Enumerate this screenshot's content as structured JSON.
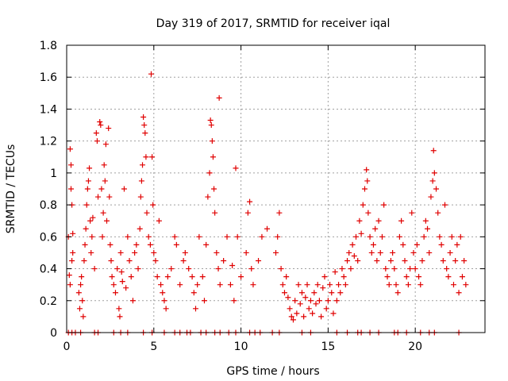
{
  "chart_data": {
    "type": "scatter",
    "title": "Day 319 of 2017, SRMTID for receiver iqal",
    "xlabel": "GPS time / hours",
    "ylabel": "SRMTID / TECUs",
    "xlim": [
      0,
      24
    ],
    "ylim": [
      0,
      1.8
    ],
    "xticks": [
      0,
      5,
      10,
      15,
      20
    ],
    "xtick_labels": [
      "0",
      "5",
      "10",
      "15",
      "20"
    ],
    "yticks": [
      0,
      0.2,
      0.4,
      0.6,
      0.8,
      1,
      1.2,
      1.4,
      1.6,
      1.8
    ],
    "ytick_labels": [
      "0",
      "0.2",
      "0.4",
      "0.6",
      "0.8",
      "1",
      "1.2",
      "1.4",
      "1.6",
      "1.8"
    ],
    "grid": true,
    "marker": "plus",
    "colors": {
      "marker": "#e00000",
      "grid": "#a0a0a0",
      "axis": "#000000"
    },
    "series": [
      {
        "name": "SRMTID",
        "points": [
          [
            0.1,
            0.6
          ],
          [
            0.2,
            1.15
          ],
          [
            0.25,
            0.9
          ],
          [
            0.3,
            0.45
          ],
          [
            0.35,
            0.62
          ],
          [
            0.15,
            0.36
          ],
          [
            0.2,
            0.3
          ],
          [
            0.25,
            1.05
          ],
          [
            0.3,
            0.8
          ],
          [
            0.35,
            0.5
          ],
          [
            0.7,
            0.25
          ],
          [
            0.75,
            0.15
          ],
          [
            0.8,
            0.3
          ],
          [
            0.85,
            0.35
          ],
          [
            0.9,
            0.2
          ],
          [
            0.95,
            0.1
          ],
          [
            1.0,
            0.45
          ],
          [
            1.05,
            0.55
          ],
          [
            1.1,
            0.65
          ],
          [
            1.15,
            0.8
          ],
          [
            1.2,
            0.9
          ],
          [
            1.25,
            0.95
          ],
          [
            1.3,
            1.03
          ],
          [
            1.35,
            0.7
          ],
          [
            1.4,
            0.5
          ],
          [
            1.45,
            0.6
          ],
          [
            1.5,
            0.72
          ],
          [
            1.6,
            0.4
          ],
          [
            1.7,
            1.25
          ],
          [
            1.75,
            1.2
          ],
          [
            1.8,
            0.85
          ],
          [
            1.9,
            1.32
          ],
          [
            1.95,
            1.3
          ],
          [
            2.0,
            0.9
          ],
          [
            2.05,
            0.6
          ],
          [
            2.1,
            0.75
          ],
          [
            2.15,
            1.05
          ],
          [
            2.2,
            0.95
          ],
          [
            2.25,
            1.18
          ],
          [
            2.3,
            0.7
          ],
          [
            2.4,
            1.28
          ],
          [
            2.45,
            0.85
          ],
          [
            2.5,
            0.55
          ],
          [
            2.55,
            0.45
          ],
          [
            2.6,
            0.35
          ],
          [
            2.7,
            0.3
          ],
          [
            2.8,
            0.25
          ],
          [
            2.9,
            0.4
          ],
          [
            3.0,
            0.15
          ],
          [
            3.05,
            0.1
          ],
          [
            3.1,
            0.5
          ],
          [
            3.15,
            0.38
          ],
          [
            3.2,
            0.32
          ],
          [
            3.3,
            0.9
          ],
          [
            3.4,
            0.28
          ],
          [
            3.5,
            0.6
          ],
          [
            3.6,
            0.45
          ],
          [
            3.7,
            0.35
          ],
          [
            3.8,
            0.2
          ],
          [
            3.9,
            0.5
          ],
          [
            4.0,
            0.55
          ],
          [
            4.1,
            0.4
          ],
          [
            4.2,
            0.65
          ],
          [
            4.25,
            0.85
          ],
          [
            4.3,
            0.95
          ],
          [
            4.35,
            1.05
          ],
          [
            4.4,
            1.35
          ],
          [
            4.45,
            1.3
          ],
          [
            4.5,
            1.25
          ],
          [
            4.55,
            1.1
          ],
          [
            4.6,
            0.75
          ],
          [
            4.7,
            0.6
          ],
          [
            4.8,
            0.55
          ],
          [
            4.85,
            1.62
          ],
          [
            4.9,
            1.1
          ],
          [
            4.95,
            0.8
          ],
          [
            5.0,
            0.5
          ],
          [
            5.1,
            0.45
          ],
          [
            5.2,
            0.35
          ],
          [
            5.3,
            0.7
          ],
          [
            5.4,
            0.3
          ],
          [
            5.5,
            0.25
          ],
          [
            5.6,
            0.2
          ],
          [
            5.7,
            0.15
          ],
          [
            5.8,
            0.35
          ],
          [
            6.0,
            0.4
          ],
          [
            6.2,
            0.6
          ],
          [
            6.3,
            0.55
          ],
          [
            6.5,
            0.3
          ],
          [
            6.7,
            0.45
          ],
          [
            6.8,
            0.5
          ],
          [
            7.0,
            0.4
          ],
          [
            7.2,
            0.35
          ],
          [
            7.3,
            0.25
          ],
          [
            7.4,
            0.15
          ],
          [
            7.5,
            0.3
          ],
          [
            7.6,
            0.6
          ],
          [
            7.8,
            0.35
          ],
          [
            7.9,
            0.2
          ],
          [
            8.0,
            0.55
          ],
          [
            8.1,
            0.85
          ],
          [
            8.2,
            1.0
          ],
          [
            8.25,
            1.33
          ],
          [
            8.3,
            1.3
          ],
          [
            8.35,
            1.2
          ],
          [
            8.4,
            1.1
          ],
          [
            8.45,
            0.9
          ],
          [
            8.5,
            0.75
          ],
          [
            8.6,
            0.5
          ],
          [
            8.7,
            0.4
          ],
          [
            8.75,
            1.47
          ],
          [
            8.8,
            0.3
          ],
          [
            9.0,
            0.45
          ],
          [
            9.2,
            0.6
          ],
          [
            9.4,
            0.3
          ],
          [
            9.5,
            0.42
          ],
          [
            9.6,
            0.2
          ],
          [
            9.7,
            1.03
          ],
          [
            9.8,
            0.6
          ],
          [
            10.0,
            0.35
          ],
          [
            10.3,
            0.5
          ],
          [
            10.4,
            0.75
          ],
          [
            10.5,
            0.82
          ],
          [
            10.6,
            0.4
          ],
          [
            10.7,
            0.3
          ],
          [
            11.0,
            0.45
          ],
          [
            11.2,
            0.6
          ],
          [
            11.5,
            0.65
          ],
          [
            12.0,
            0.5
          ],
          [
            12.1,
            0.6
          ],
          [
            12.2,
            0.75
          ],
          [
            12.3,
            0.4
          ],
          [
            12.4,
            0.3
          ],
          [
            12.5,
            0.25
          ],
          [
            12.6,
            0.35
          ],
          [
            12.7,
            0.22
          ],
          [
            12.8,
            0.15
          ],
          [
            12.9,
            0.1
          ],
          [
            13.0,
            0.08
          ],
          [
            13.1,
            0.2
          ],
          [
            13.2,
            0.12
          ],
          [
            13.3,
            0.3
          ],
          [
            13.4,
            0.18
          ],
          [
            13.5,
            0.25
          ],
          [
            13.6,
            0.1
          ],
          [
            13.7,
            0.22
          ],
          [
            13.8,
            0.3
          ],
          [
            13.9,
            0.15
          ],
          [
            14.0,
            0.2
          ],
          [
            14.1,
            0.12
          ],
          [
            14.2,
            0.25
          ],
          [
            14.3,
            0.18
          ],
          [
            14.4,
            0.3
          ],
          [
            14.5,
            0.2
          ],
          [
            14.6,
            0.1
          ],
          [
            14.7,
            0.28
          ],
          [
            14.8,
            0.35
          ],
          [
            14.9,
            0.15
          ],
          [
            15.0,
            0.2
          ],
          [
            15.1,
            0.3
          ],
          [
            15.2,
            0.25
          ],
          [
            15.3,
            0.12
          ],
          [
            15.4,
            0.38
          ],
          [
            15.5,
            0.2
          ],
          [
            15.6,
            0.3
          ],
          [
            15.7,
            0.25
          ],
          [
            15.8,
            0.4
          ],
          [
            15.9,
            0.35
          ],
          [
            16.0,
            0.3
          ],
          [
            16.1,
            0.45
          ],
          [
            16.2,
            0.5
          ],
          [
            16.3,
            0.4
          ],
          [
            16.4,
            0.55
          ],
          [
            16.5,
            0.48
          ],
          [
            16.6,
            0.6
          ],
          [
            16.7,
            0.45
          ],
          [
            16.8,
            0.7
          ],
          [
            16.9,
            0.62
          ],
          [
            17.0,
            0.8
          ],
          [
            17.1,
            0.9
          ],
          [
            17.2,
            1.02
          ],
          [
            17.25,
            0.95
          ],
          [
            17.3,
            0.75
          ],
          [
            17.4,
            0.6
          ],
          [
            17.5,
            0.5
          ],
          [
            17.6,
            0.55
          ],
          [
            17.7,
            0.65
          ],
          [
            17.8,
            0.45
          ],
          [
            17.9,
            0.7
          ],
          [
            18.0,
            0.5
          ],
          [
            18.1,
            0.6
          ],
          [
            18.2,
            0.8
          ],
          [
            18.3,
            0.4
          ],
          [
            18.4,
            0.35
          ],
          [
            18.5,
            0.3
          ],
          [
            18.6,
            0.45
          ],
          [
            18.7,
            0.5
          ],
          [
            18.8,
            0.4
          ],
          [
            18.9,
            0.3
          ],
          [
            19.0,
            0.25
          ],
          [
            19.1,
            0.6
          ],
          [
            19.2,
            0.7
          ],
          [
            19.3,
            0.55
          ],
          [
            19.4,
            0.45
          ],
          [
            19.5,
            0.35
          ],
          [
            19.6,
            0.3
          ],
          [
            19.7,
            0.4
          ],
          [
            19.8,
            0.75
          ],
          [
            19.9,
            0.5
          ],
          [
            20.0,
            0.4
          ],
          [
            20.1,
            0.55
          ],
          [
            20.2,
            0.35
          ],
          [
            20.3,
            0.3
          ],
          [
            20.4,
            0.45
          ],
          [
            20.5,
            0.6
          ],
          [
            20.6,
            0.7
          ],
          [
            20.7,
            0.65
          ],
          [
            20.8,
            0.5
          ],
          [
            20.9,
            0.85
          ],
          [
            21.0,
            0.95
          ],
          [
            21.05,
            1.14
          ],
          [
            21.1,
            1.0
          ],
          [
            21.2,
            0.9
          ],
          [
            21.3,
            0.75
          ],
          [
            21.4,
            0.6
          ],
          [
            21.5,
            0.55
          ],
          [
            21.6,
            0.45
          ],
          [
            21.7,
            0.8
          ],
          [
            21.8,
            0.4
          ],
          [
            21.9,
            0.35
          ],
          [
            22.0,
            0.5
          ],
          [
            22.1,
            0.6
          ],
          [
            22.2,
            0.3
          ],
          [
            22.3,
            0.45
          ],
          [
            22.4,
            0.55
          ],
          [
            22.5,
            0.25
          ],
          [
            22.6,
            0.6
          ],
          [
            22.7,
            0.35
          ],
          [
            22.8,
            0.45
          ],
          [
            22.9,
            0.3
          ],
          [
            0.1,
            0
          ],
          [
            0.3,
            0
          ],
          [
            0.5,
            0
          ],
          [
            0.8,
            0
          ],
          [
            1.6,
            0
          ],
          [
            1.8,
            0
          ],
          [
            2.7,
            0
          ],
          [
            3.1,
            0
          ],
          [
            3.5,
            0
          ],
          [
            4.4,
            0
          ],
          [
            4.9,
            0
          ],
          [
            5.6,
            0
          ],
          [
            6.2,
            0
          ],
          [
            6.5,
            0
          ],
          [
            6.9,
            0
          ],
          [
            7.1,
            0
          ],
          [
            7.7,
            0
          ],
          [
            8.0,
            0
          ],
          [
            8.5,
            0
          ],
          [
            8.8,
            0
          ],
          [
            9.3,
            0
          ],
          [
            9.7,
            0
          ],
          [
            10.5,
            0
          ],
          [
            10.8,
            0
          ],
          [
            11.1,
            0
          ],
          [
            11.8,
            0
          ],
          [
            12.2,
            0
          ],
          [
            13.5,
            0
          ],
          [
            14.0,
            0
          ],
          [
            15.5,
            0
          ],
          [
            16.1,
            0
          ],
          [
            16.7,
            0
          ],
          [
            16.9,
            0
          ],
          [
            17.4,
            0
          ],
          [
            17.9,
            0
          ],
          [
            18.8,
            0
          ],
          [
            19.0,
            0
          ],
          [
            19.5,
            0
          ],
          [
            20.3,
            0
          ],
          [
            20.8,
            0
          ],
          [
            21.1,
            0
          ],
          [
            22.5,
            0
          ]
        ]
      }
    ]
  }
}
